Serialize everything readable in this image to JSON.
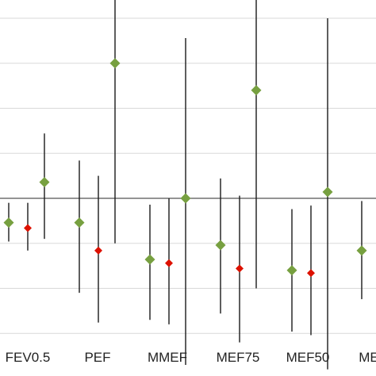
{
  "chart_data": {
    "type": "scatter",
    "subtype": "point-with-error-bars",
    "title": "",
    "xlabel": "",
    "ylabel": "",
    "categories": [
      "FEV0.5",
      "PEF",
      "MMEF",
      "MEF75",
      "MEF50",
      "ME"
    ],
    "ylim": [
      -3,
      4.5
    ],
    "gridlines_y": [
      -3,
      -2.5,
      -2,
      -1.5,
      -1,
      -0.5,
      0,
      0.5,
      1,
      1.5,
      2,
      2.5,
      3,
      3.5,
      4
    ],
    "reference_line_y": 0,
    "grid": true,
    "legend": "none",
    "series": [
      {
        "color": "#77a040",
        "marker": "diamond",
        "points": [
          {
            "category": "FEV0.5",
            "offset": -1,
            "y": -0.27,
            "low": -0.48,
            "high": -0.05
          },
          {
            "category": "FEV0.5",
            "offset": 1,
            "y": 0.18,
            "low": -0.45,
            "high": 0.72
          },
          {
            "category": "PEF",
            "offset": -1,
            "y": -0.27,
            "low": -1.05,
            "high": 0.42
          },
          {
            "category": "PEF",
            "offset": 1,
            "y": 1.5,
            "low": -0.5,
            "high": 3.48
          },
          {
            "category": "MMEF",
            "offset": -1,
            "y": -0.68,
            "low": -1.35,
            "high": -0.07
          },
          {
            "category": "MMEF",
            "offset": 1,
            "y": 0.0,
            "low": -1.85,
            "high": 1.78
          },
          {
            "category": "MEF75",
            "offset": -1,
            "y": -0.52,
            "low": -1.28,
            "high": 0.22
          },
          {
            "category": "MEF75",
            "offset": 1,
            "y": 1.2,
            "low": -1.0,
            "high": 3.35
          },
          {
            "category": "MEF50",
            "offset": -1,
            "y": -0.8,
            "low": -1.48,
            "high": -0.12
          },
          {
            "category": "MEF50",
            "offset": 1,
            "y": 0.07,
            "low": -1.9,
            "high": 2.0
          },
          {
            "category": "ME",
            "offset": -1,
            "y": -0.58,
            "low": -1.12,
            "high": -0.03
          }
        ]
      },
      {
        "color": "#dd1100",
        "marker": "diamond",
        "points": [
          {
            "category": "FEV0.5",
            "offset": 0,
            "y": -0.33,
            "low": -0.58,
            "high": -0.05
          },
          {
            "category": "PEF",
            "offset": 0,
            "y": -0.58,
            "low": -1.38,
            "high": 0.25
          },
          {
            "category": "MMEF",
            "offset": 0,
            "y": -0.72,
            "low": -1.4,
            "high": 0.0
          },
          {
            "category": "MEF75",
            "offset": 0,
            "y": -0.78,
            "low": -1.6,
            "high": 0.03
          },
          {
            "category": "MEF50",
            "offset": 0,
            "y": -0.83,
            "low": -1.52,
            "high": -0.08
          }
        ]
      }
    ]
  }
}
